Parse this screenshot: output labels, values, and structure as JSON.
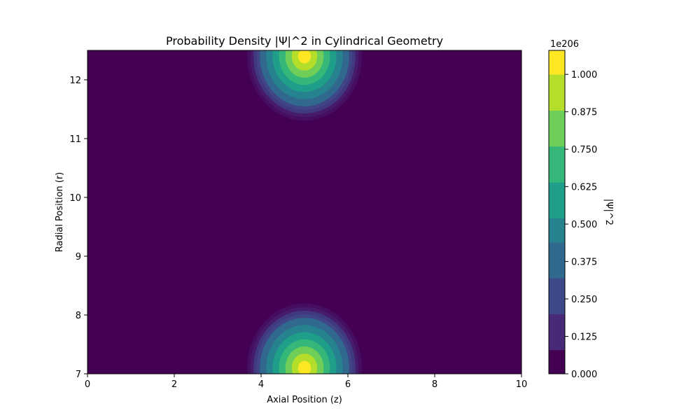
{
  "chart_data": {
    "type": "heatmap",
    "title": "Probability Density |Ψ|^2 in Cylindrical Geometry",
    "xlabel": "Axial Position (z)",
    "ylabel": "Radial Position (r)",
    "xlim": [
      0,
      10
    ],
    "ylim": [
      7,
      12.5
    ],
    "x_ticks": [
      "0",
      "2",
      "4",
      "6",
      "8",
      "10"
    ],
    "y_ticks": [
      "7",
      "8",
      "9",
      "10",
      "11",
      "12"
    ],
    "peaks": [
      {
        "z": 5,
        "r": 7.1,
        "value": 1.0
      },
      {
        "z": 5,
        "r": 12.4,
        "value": 1.0
      }
    ],
    "colorbar": {
      "label": "|Ψ|^2",
      "exponent": "1e206",
      "min": 0,
      "max": 1.08,
      "ticks": [
        "0.000",
        "0.125",
        "0.250",
        "0.375",
        "0.500",
        "0.625",
        "0.750",
        "0.875",
        "1.000"
      ],
      "colormap": [
        "#440154",
        "#482878",
        "#3e4989",
        "#31688e",
        "#26828e",
        "#1f9e89",
        "#35b779",
        "#6ece58",
        "#b5de2b",
        "#fde725"
      ]
    },
    "grid": false
  }
}
